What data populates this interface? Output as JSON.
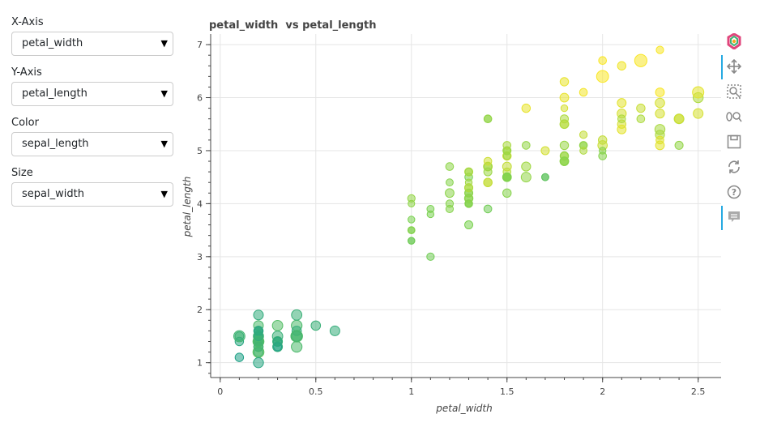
{
  "controls": [
    {
      "label": "X-Axis",
      "value": "petal_width"
    },
    {
      "label": "Y-Axis",
      "value": "petal_length"
    },
    {
      "label": "Color",
      "value": "sepal_length"
    },
    {
      "label": "Size",
      "value": "sepal_width"
    }
  ],
  "toolbar": {
    "tools": [
      "bokeh-logo-icon",
      "pan-icon",
      "box-zoom-icon",
      "wheel-zoom-icon",
      "save-icon",
      "reset-icon",
      "help-icon",
      "hover-icon"
    ]
  },
  "chart_data": {
    "type": "scatter",
    "title": "petal_width  vs petal_length",
    "xlabel": "petal_width",
    "ylabel": "petal_length",
    "xlim": [
      -0.05,
      2.62
    ],
    "ylim": [
      0.72,
      7.2
    ],
    "xticks": [
      "0",
      "0.5",
      "1",
      "1.5",
      "2",
      "2.5"
    ],
    "yticks": [
      "1",
      "2",
      "3",
      "4",
      "5",
      "6",
      "7"
    ],
    "grid": true,
    "colors": {
      "low": "#1fa187",
      "mid": "#7ad151",
      "high": "#fde725"
    },
    "points": [
      {
        "x": 0.2,
        "y": 1.4,
        "c": 0.15,
        "s": 0.5
      },
      {
        "x": 0.2,
        "y": 1.4,
        "c": 0.1,
        "s": 0.3
      },
      {
        "x": 0.2,
        "y": 1.3,
        "c": 0.05,
        "s": 0.4
      },
      {
        "x": 0.2,
        "y": 1.5,
        "c": 0.03,
        "s": 0.35
      },
      {
        "x": 0.2,
        "y": 1.4,
        "c": 0.12,
        "s": 0.55
      },
      {
        "x": 0.4,
        "y": 1.7,
        "c": 0.25,
        "s": 0.65
      },
      {
        "x": 0.3,
        "y": 1.4,
        "c": 0.03,
        "s": 0.45
      },
      {
        "x": 0.2,
        "y": 1.5,
        "c": 0.1,
        "s": 0.45
      },
      {
        "x": 0.2,
        "y": 1.4,
        "c": 0.0,
        "s": 0.25
      },
      {
        "x": 0.1,
        "y": 1.5,
        "c": 0.1,
        "s": 0.35
      },
      {
        "x": 0.2,
        "y": 1.5,
        "c": 0.25,
        "s": 0.58
      },
      {
        "x": 0.2,
        "y": 1.6,
        "c": 0.08,
        "s": 0.45
      },
      {
        "x": 0.1,
        "y": 1.4,
        "c": 0.06,
        "s": 0.3
      },
      {
        "x": 0.1,
        "y": 1.1,
        "c": 0.0,
        "s": 0.3
      },
      {
        "x": 0.2,
        "y": 1.2,
        "c": 0.35,
        "s": 0.7
      },
      {
        "x": 0.4,
        "y": 1.5,
        "c": 0.3,
        "s": 0.8
      },
      {
        "x": 0.4,
        "y": 1.3,
        "c": 0.25,
        "s": 0.65
      },
      {
        "x": 0.3,
        "y": 1.4,
        "c": 0.15,
        "s": 0.5
      },
      {
        "x": 0.3,
        "y": 1.7,
        "c": 0.3,
        "s": 0.6
      },
      {
        "x": 0.3,
        "y": 1.5,
        "c": 0.15,
        "s": 0.6
      },
      {
        "x": 0.2,
        "y": 1.7,
        "c": 0.25,
        "s": 0.5
      },
      {
        "x": 0.4,
        "y": 1.5,
        "c": 0.15,
        "s": 0.55
      },
      {
        "x": 0.2,
        "y": 1.0,
        "c": 0.05,
        "s": 0.55
      },
      {
        "x": 0.5,
        "y": 1.7,
        "c": 0.15,
        "s": 0.45
      },
      {
        "x": 0.2,
        "y": 1.9,
        "c": 0.1,
        "s": 0.5
      },
      {
        "x": 0.2,
        "y": 1.6,
        "c": 0.12,
        "s": 0.3
      },
      {
        "x": 0.4,
        "y": 1.6,
        "c": 0.12,
        "s": 0.45
      },
      {
        "x": 0.2,
        "y": 1.5,
        "c": 0.18,
        "s": 0.5
      },
      {
        "x": 0.2,
        "y": 1.4,
        "c": 0.18,
        "s": 0.45
      },
      {
        "x": 0.2,
        "y": 1.6,
        "c": 0.05,
        "s": 0.4
      },
      {
        "x": 0.4,
        "y": 1.5,
        "c": 0.25,
        "s": 0.75
      },
      {
        "x": 0.1,
        "y": 1.5,
        "c": 0.2,
        "s": 0.72
      },
      {
        "x": 0.2,
        "y": 1.4,
        "c": 0.3,
        "s": 0.7
      },
      {
        "x": 0.2,
        "y": 1.2,
        "c": 0.2,
        "s": 0.4
      },
      {
        "x": 0.2,
        "y": 1.3,
        "c": 0.2,
        "s": 0.45
      },
      {
        "x": 0.2,
        "y": 1.5,
        "c": 0.1,
        "s": 0.4
      },
      {
        "x": 0.3,
        "y": 1.3,
        "c": 0.12,
        "s": 0.5
      },
      {
        "x": 0.3,
        "y": 1.3,
        "c": 0.0,
        "s": 0.25
      },
      {
        "x": 0.6,
        "y": 1.6,
        "c": 0.12,
        "s": 0.5
      },
      {
        "x": 0.4,
        "y": 1.9,
        "c": 0.15,
        "s": 0.6
      },
      {
        "x": 0.3,
        "y": 1.4,
        "c": 0.08,
        "s": 0.3
      },
      {
        "x": 1.4,
        "y": 4.7,
        "c": 0.85,
        "s": 0.35
      },
      {
        "x": 1.5,
        "y": 4.5,
        "c": 0.7,
        "s": 0.35
      },
      {
        "x": 1.5,
        "y": 4.9,
        "c": 0.83,
        "s": 0.3
      },
      {
        "x": 1.3,
        "y": 4.0,
        "c": 0.55,
        "s": 0.05
      },
      {
        "x": 1.5,
        "y": 4.6,
        "c": 0.72,
        "s": 0.2
      },
      {
        "x": 1.3,
        "y": 4.5,
        "c": 0.5,
        "s": 0.2
      },
      {
        "x": 1.6,
        "y": 4.7,
        "c": 0.65,
        "s": 0.4
      },
      {
        "x": 1.0,
        "y": 3.3,
        "c": 0.4,
        "s": 0.05
      },
      {
        "x": 1.3,
        "y": 4.6,
        "c": 0.75,
        "s": 0.25
      },
      {
        "x": 1.4,
        "y": 3.9,
        "c": 0.45,
        "s": 0.2
      },
      {
        "x": 1.0,
        "y": 3.5,
        "c": 0.45,
        "s": 0.0
      },
      {
        "x": 1.5,
        "y": 4.2,
        "c": 0.55,
        "s": 0.3
      },
      {
        "x": 1.0,
        "y": 4.0,
        "c": 0.58,
        "s": 0.02
      },
      {
        "x": 1.4,
        "y": 4.7,
        "c": 0.6,
        "s": 0.25
      },
      {
        "x": 1.3,
        "y": 3.6,
        "c": 0.5,
        "s": 0.25
      },
      {
        "x": 1.4,
        "y": 4.4,
        "c": 0.8,
        "s": 0.3
      },
      {
        "x": 1.5,
        "y": 4.5,
        "c": 0.5,
        "s": 0.3
      },
      {
        "x": 1.0,
        "y": 4.1,
        "c": 0.6,
        "s": 0.15
      },
      {
        "x": 1.5,
        "y": 4.5,
        "c": 0.6,
        "s": 0.05
      },
      {
        "x": 1.1,
        "y": 3.9,
        "c": 0.5,
        "s": 0.1
      },
      {
        "x": 1.8,
        "y": 4.8,
        "c": 0.6,
        "s": 0.35
      },
      {
        "x": 1.3,
        "y": 4.0,
        "c": 0.58,
        "s": 0.2
      },
      {
        "x": 1.5,
        "y": 4.9,
        "c": 0.63,
        "s": 0.1
      },
      {
        "x": 1.2,
        "y": 4.7,
        "c": 0.58,
        "s": 0.2
      },
      {
        "x": 1.3,
        "y": 4.3,
        "c": 0.66,
        "s": 0.25
      },
      {
        "x": 1.4,
        "y": 4.4,
        "c": 0.78,
        "s": 0.3
      },
      {
        "x": 1.4,
        "y": 4.8,
        "c": 0.82,
        "s": 0.2
      },
      {
        "x": 1.7,
        "y": 5.0,
        "c": 0.84,
        "s": 0.25
      },
      {
        "x": 1.5,
        "y": 4.5,
        "c": 0.6,
        "s": 0.2
      },
      {
        "x": 1.0,
        "y": 3.5,
        "c": 0.55,
        "s": 0.1
      },
      {
        "x": 1.1,
        "y": 3.8,
        "c": 0.5,
        "s": 0.05
      },
      {
        "x": 1.0,
        "y": 3.7,
        "c": 0.5,
        "s": 0.05
      },
      {
        "x": 1.2,
        "y": 3.9,
        "c": 0.55,
        "s": 0.15
      },
      {
        "x": 1.6,
        "y": 5.1,
        "c": 0.6,
        "s": 0.2
      },
      {
        "x": 1.5,
        "y": 4.5,
        "c": 0.5,
        "s": 0.3
      },
      {
        "x": 1.6,
        "y": 4.5,
        "c": 0.6,
        "s": 0.5
      },
      {
        "x": 1.5,
        "y": 4.7,
        "c": 0.78,
        "s": 0.35
      },
      {
        "x": 1.3,
        "y": 4.4,
        "c": 0.65,
        "s": 0.05
      },
      {
        "x": 1.3,
        "y": 4.1,
        "c": 0.55,
        "s": 0.3
      },
      {
        "x": 1.3,
        "y": 4.0,
        "c": 0.52,
        "s": 0.1
      },
      {
        "x": 1.2,
        "y": 4.4,
        "c": 0.55,
        "s": 0.1
      },
      {
        "x": 1.4,
        "y": 4.6,
        "c": 0.63,
        "s": 0.25
      },
      {
        "x": 1.2,
        "y": 4.0,
        "c": 0.55,
        "s": 0.15
      },
      {
        "x": 1.0,
        "y": 3.3,
        "c": 0.45,
        "s": 0.05
      },
      {
        "x": 1.3,
        "y": 4.2,
        "c": 0.55,
        "s": 0.2
      },
      {
        "x": 1.2,
        "y": 4.2,
        "c": 0.57,
        "s": 0.35
      },
      {
        "x": 1.3,
        "y": 4.2,
        "c": 0.57,
        "s": 0.25
      },
      {
        "x": 1.3,
        "y": 4.3,
        "c": 0.7,
        "s": 0.25
      },
      {
        "x": 1.1,
        "y": 3.0,
        "c": 0.45,
        "s": 0.15
      },
      {
        "x": 1.3,
        "y": 4.1,
        "c": 0.57,
        "s": 0.2
      },
      {
        "x": 1.4,
        "y": 5.6,
        "c": 0.6,
        "s": 0.2
      },
      {
        "x": 1.5,
        "y": 5.0,
        "c": 0.62,
        "s": 0.25
      },
      {
        "x": 1.3,
        "y": 4.6,
        "c": 0.63,
        "s": 0.15
      },
      {
        "x": 1.7,
        "y": 4.5,
        "c": 0.4,
        "s": 0.1
      },
      {
        "x": 2.5,
        "y": 6.0,
        "c": 0.7,
        "s": 0.55
      },
      {
        "x": 1.9,
        "y": 5.1,
        "c": 0.58,
        "s": 0.2
      },
      {
        "x": 2.1,
        "y": 5.9,
        "c": 0.9,
        "s": 0.35
      },
      {
        "x": 1.8,
        "y": 5.6,
        "c": 0.7,
        "s": 0.25
      },
      {
        "x": 2.2,
        "y": 5.8,
        "c": 0.8,
        "s": 0.3
      },
      {
        "x": 2.1,
        "y": 6.6,
        "c": 0.95,
        "s": 0.3
      },
      {
        "x": 1.7,
        "y": 4.5,
        "c": 0.35,
        "s": 0.1
      },
      {
        "x": 1.8,
        "y": 6.3,
        "c": 0.92,
        "s": 0.3
      },
      {
        "x": 1.8,
        "y": 5.8,
        "c": 0.85,
        "s": 0.05
      },
      {
        "x": 2.5,
        "y": 6.1,
        "c": 0.9,
        "s": 0.75
      },
      {
        "x": 2.0,
        "y": 5.1,
        "c": 0.8,
        "s": 0.45
      },
      {
        "x": 1.9,
        "y": 5.3,
        "c": 0.78,
        "s": 0.15
      },
      {
        "x": 2.1,
        "y": 5.5,
        "c": 0.85,
        "s": 0.3
      },
      {
        "x": 2.0,
        "y": 5.0,
        "c": 0.55,
        "s": 0.05
      },
      {
        "x": 2.4,
        "y": 5.1,
        "c": 0.6,
        "s": 0.25
      },
      {
        "x": 2.3,
        "y": 5.3,
        "c": 0.7,
        "s": 0.4
      },
      {
        "x": 1.8,
        "y": 5.5,
        "c": 0.8,
        "s": 0.3
      },
      {
        "x": 2.2,
        "y": 6.7,
        "c": 0.98,
        "s": 0.9
      },
      {
        "x": 2.3,
        "y": 6.9,
        "c": 0.98,
        "s": 0.15
      },
      {
        "x": 1.5,
        "y": 5.0,
        "c": 0.65,
        "s": 0.0
      },
      {
        "x": 2.3,
        "y": 5.7,
        "c": 0.85,
        "s": 0.4
      },
      {
        "x": 2.0,
        "y": 4.9,
        "c": 0.55,
        "s": 0.2
      },
      {
        "x": 2.0,
        "y": 6.7,
        "c": 0.98,
        "s": 0.2
      },
      {
        "x": 1.8,
        "y": 4.9,
        "c": 0.7,
        "s": 0.2
      },
      {
        "x": 2.1,
        "y": 5.7,
        "c": 0.85,
        "s": 0.4
      },
      {
        "x": 1.8,
        "y": 6.0,
        "c": 0.92,
        "s": 0.35
      },
      {
        "x": 1.8,
        "y": 4.8,
        "c": 0.65,
        "s": 0.2
      },
      {
        "x": 1.8,
        "y": 4.9,
        "c": 0.6,
        "s": 0.3
      },
      {
        "x": 2.1,
        "y": 5.6,
        "c": 0.7,
        "s": 0.2
      },
      {
        "x": 1.6,
        "y": 5.8,
        "c": 0.92,
        "s": 0.3
      },
      {
        "x": 1.9,
        "y": 6.1,
        "c": 0.96,
        "s": 0.2
      },
      {
        "x": 2.0,
        "y": 6.4,
        "c": 0.99,
        "s": 0.85
      },
      {
        "x": 2.2,
        "y": 5.6,
        "c": 0.7,
        "s": 0.2
      },
      {
        "x": 1.5,
        "y": 5.1,
        "c": 0.68,
        "s": 0.2
      },
      {
        "x": 1.4,
        "y": 5.6,
        "c": 0.6,
        "s": 0.15
      },
      {
        "x": 2.3,
        "y": 6.1,
        "c": 0.98,
        "s": 0.35
      },
      {
        "x": 2.4,
        "y": 5.6,
        "c": 0.7,
        "s": 0.5
      },
      {
        "x": 1.8,
        "y": 5.5,
        "c": 0.7,
        "s": 0.35
      },
      {
        "x": 1.8,
        "y": 4.8,
        "c": 0.55,
        "s": 0.3
      },
      {
        "x": 2.1,
        "y": 5.4,
        "c": 0.9,
        "s": 0.35
      },
      {
        "x": 2.4,
        "y": 5.6,
        "c": 0.85,
        "s": 0.35
      },
      {
        "x": 2.3,
        "y": 5.1,
        "c": 0.9,
        "s": 0.35
      },
      {
        "x": 1.9,
        "y": 5.1,
        "c": 0.6,
        "s": 0.1
      },
      {
        "x": 2.3,
        "y": 5.9,
        "c": 0.85,
        "s": 0.45
      },
      {
        "x": 2.5,
        "y": 5.7,
        "c": 0.85,
        "s": 0.5
      },
      {
        "x": 2.3,
        "y": 5.2,
        "c": 0.88,
        "s": 0.2
      },
      {
        "x": 1.9,
        "y": 5.0,
        "c": 0.7,
        "s": 0.1
      },
      {
        "x": 2.0,
        "y": 5.2,
        "c": 0.78,
        "s": 0.3
      },
      {
        "x": 2.3,
        "y": 5.4,
        "c": 0.68,
        "s": 0.55
      },
      {
        "x": 1.8,
        "y": 5.1,
        "c": 0.62,
        "s": 0.3
      }
    ]
  }
}
